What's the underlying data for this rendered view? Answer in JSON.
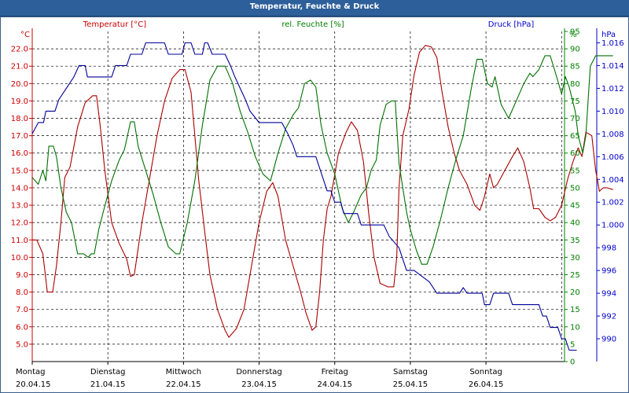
{
  "chart_data": {
    "type": "line",
    "title": "Temperatur, Feuchte & Druck",
    "x_days": [
      {
        "day": "Montag",
        "date": "20.04.15"
      },
      {
        "day": "Dienstag",
        "date": "21.04.15"
      },
      {
        "day": "Mittwoch",
        "date": "22.04.15"
      },
      {
        "day": "Donnerstag",
        "date": "23.04.15"
      },
      {
        "day": "Freitag",
        "date": "24.04.15"
      },
      {
        "day": "Samstag",
        "date": "25.04.15"
      },
      {
        "day": "Sonntag",
        "date": "26.04.15"
      }
    ],
    "xlim_days": [
      0,
      7
    ],
    "grid": true,
    "axes": {
      "temp": {
        "label": "Temperatur [°C]",
        "unit": "°C",
        "ylim": [
          4.0,
          23.0
        ],
        "ticks": [
          5.0,
          6.0,
          7.0,
          8.0,
          9.0,
          10.0,
          11.0,
          12.0,
          13.0,
          14.0,
          15.0,
          16.0,
          17.0,
          18.0,
          19.0,
          20.0,
          21.0,
          22.0
        ],
        "color": "#cc0000"
      },
      "hum": {
        "label": "rel. Feuchte [%]",
        "unit": "%",
        "ylim": [
          0,
          95
        ],
        "ticks": [
          0,
          5,
          10,
          15,
          20,
          25,
          30,
          35,
          40,
          45,
          50,
          55,
          60,
          65,
          70,
          75,
          80,
          85,
          90,
          95
        ],
        "color": "#008000"
      },
      "press": {
        "label": "Druck [hPa]",
        "unit": "hPa",
        "ylim": [
          988,
          1017
        ],
        "ticks": [
          990,
          992,
          994,
          996,
          998,
          1000,
          1002,
          1004,
          1006,
          1008,
          1010,
          1012,
          1014,
          1016
        ],
        "color": "#0000cc"
      }
    },
    "series": [
      {
        "name": "Temperatur [°C]",
        "axis": "temp",
        "color": "#aa0000",
        "points": [
          [
            0,
            11.0
          ],
          [
            0.06,
            11.0
          ],
          [
            0.14,
            10.2
          ],
          [
            0.2,
            8.0
          ],
          [
            0.27,
            8.0
          ],
          [
            0.32,
            9.5
          ],
          [
            0.38,
            12.0
          ],
          [
            0.43,
            14.6
          ],
          [
            0.5,
            15.2
          ],
          [
            0.6,
            17.5
          ],
          [
            0.7,
            18.9
          ],
          [
            0.8,
            19.3
          ],
          [
            0.85,
            19.3
          ],
          [
            0.9,
            17.5
          ],
          [
            0.96,
            15.0
          ],
          [
            1.05,
            12.0
          ],
          [
            1.15,
            10.8
          ],
          [
            1.25,
            9.9
          ],
          [
            1.3,
            8.9
          ],
          [
            1.35,
            9.0
          ],
          [
            1.45,
            12.0
          ],
          [
            1.55,
            14.5
          ],
          [
            1.65,
            17.0
          ],
          [
            1.75,
            19.0
          ],
          [
            1.85,
            20.3
          ],
          [
            1.95,
            20.8
          ],
          [
            2.02,
            20.8
          ],
          [
            2.1,
            19.5
          ],
          [
            2.15,
            17.0
          ],
          [
            2.2,
            14.5
          ],
          [
            2.28,
            11.5
          ],
          [
            2.35,
            9.0
          ],
          [
            2.45,
            7.0
          ],
          [
            2.55,
            5.8
          ],
          [
            2.6,
            5.4
          ],
          [
            2.7,
            5.9
          ],
          [
            2.8,
            7.0
          ],
          [
            2.9,
            9.5
          ],
          [
            3.0,
            12.0
          ],
          [
            3.1,
            13.8
          ],
          [
            3.18,
            14.3
          ],
          [
            3.25,
            13.5
          ],
          [
            3.35,
            11.0
          ],
          [
            3.45,
            9.5
          ],
          [
            3.55,
            8.0
          ],
          [
            3.62,
            6.8
          ],
          [
            3.7,
            5.8
          ],
          [
            3.75,
            6.0
          ],
          [
            3.8,
            8.0
          ],
          [
            3.85,
            11.0
          ],
          [
            3.9,
            12.8
          ],
          [
            3.95,
            13.5
          ],
          [
            4.05,
            16.0
          ],
          [
            4.15,
            17.2
          ],
          [
            4.22,
            17.8
          ],
          [
            4.3,
            17.3
          ],
          [
            4.38,
            15.5
          ],
          [
            4.45,
            12.5
          ],
          [
            4.52,
            10.0
          ],
          [
            4.6,
            8.5
          ],
          [
            4.7,
            8.3
          ],
          [
            4.78,
            8.3
          ],
          [
            4.82,
            10.0
          ],
          [
            4.85,
            14.0
          ],
          [
            4.9,
            17.0
          ],
          [
            4.98,
            18.5
          ],
          [
            5.05,
            20.5
          ],
          [
            5.12,
            21.8
          ],
          [
            5.2,
            22.2
          ],
          [
            5.28,
            22.1
          ],
          [
            5.35,
            21.5
          ],
          [
            5.42,
            19.5
          ],
          [
            5.5,
            17.5
          ],
          [
            5.58,
            16.0
          ],
          [
            5.65,
            15.0
          ],
          [
            5.75,
            14.2
          ],
          [
            5.85,
            13.0
          ],
          [
            5.92,
            12.7
          ],
          [
            5.98,
            13.5
          ],
          [
            6.05,
            14.8
          ],
          [
            6.1,
            14.0
          ],
          [
            6.15,
            14.2
          ],
          [
            6.25,
            15.0
          ],
          [
            6.35,
            15.8
          ],
          [
            6.42,
            16.3
          ],
          [
            6.5,
            15.5
          ],
          [
            6.58,
            14.0
          ],
          [
            6.63,
            12.8
          ],
          [
            6.7,
            12.8
          ],
          [
            6.78,
            12.3
          ],
          [
            6.85,
            12.1
          ],
          [
            6.92,
            12.3
          ],
          [
            7.0,
            13.0
          ],
          [
            7.08,
            14.5
          ],
          [
            7.15,
            15.5
          ],
          [
            7.22,
            16.3
          ],
          [
            7.27,
            15.8
          ],
          [
            7.32,
            17.2
          ],
          [
            7.4,
            17.0
          ],
          [
            7.45,
            15.0
          ],
          [
            7.5,
            13.8
          ],
          [
            7.55,
            14.0
          ],
          [
            7.6,
            14.0
          ],
          [
            7.68,
            13.9
          ]
        ]
      },
      {
        "name": "rel. Feuchte [%]",
        "axis": "hum",
        "color": "#007000",
        "points": [
          [
            0,
            53
          ],
          [
            0.08,
            51
          ],
          [
            0.14,
            55
          ],
          [
            0.18,
            52
          ],
          [
            0.22,
            62
          ],
          [
            0.28,
            62
          ],
          [
            0.32,
            59
          ],
          [
            0.38,
            50
          ],
          [
            0.45,
            43
          ],
          [
            0.52,
            40
          ],
          [
            0.6,
            31
          ],
          [
            0.68,
            31
          ],
          [
            0.74,
            30
          ],
          [
            0.78,
            31
          ],
          [
            0.82,
            31
          ],
          [
            0.88,
            38
          ],
          [
            0.95,
            44
          ],
          [
            1.0,
            48
          ],
          [
            1.05,
            52
          ],
          [
            1.15,
            58
          ],
          [
            1.22,
            61
          ],
          [
            1.3,
            69
          ],
          [
            1.35,
            69
          ],
          [
            1.4,
            62
          ],
          [
            1.5,
            55
          ],
          [
            1.6,
            48
          ],
          [
            1.7,
            40
          ],
          [
            1.8,
            33
          ],
          [
            1.9,
            31
          ],
          [
            1.95,
            31
          ],
          [
            2.05,
            40
          ],
          [
            2.15,
            52
          ],
          [
            2.25,
            68
          ],
          [
            2.35,
            81
          ],
          [
            2.45,
            85
          ],
          [
            2.55,
            85
          ],
          [
            2.65,
            80
          ],
          [
            2.75,
            72
          ],
          [
            2.85,
            66
          ],
          [
            2.95,
            59
          ],
          [
            3.05,
            54
          ],
          [
            3.15,
            52
          ],
          [
            3.25,
            60
          ],
          [
            3.35,
            67
          ],
          [
            3.45,
            71
          ],
          [
            3.52,
            73
          ],
          [
            3.6,
            80
          ],
          [
            3.68,
            81
          ],
          [
            3.75,
            79
          ],
          [
            3.82,
            68
          ],
          [
            3.9,
            60
          ],
          [
            4.0,
            54
          ],
          [
            4.1,
            44
          ],
          [
            4.18,
            40
          ],
          [
            4.25,
            43
          ],
          [
            4.35,
            48
          ],
          [
            4.42,
            50
          ],
          [
            4.48,
            55
          ],
          [
            4.55,
            58
          ],
          [
            4.6,
            68
          ],
          [
            4.68,
            74
          ],
          [
            4.75,
            75
          ],
          [
            4.8,
            75
          ],
          [
            4.85,
            57
          ],
          [
            4.9,
            50
          ],
          [
            4.95,
            43
          ],
          [
            5.0,
            38
          ],
          [
            5.08,
            32
          ],
          [
            5.15,
            28
          ],
          [
            5.22,
            28
          ],
          [
            5.3,
            33
          ],
          [
            5.4,
            41
          ],
          [
            5.5,
            50
          ],
          [
            5.6,
            58
          ],
          [
            5.7,
            65
          ],
          [
            5.8,
            78
          ],
          [
            5.88,
            87
          ],
          [
            5.95,
            87
          ],
          [
            6.02,
            80
          ],
          [
            6.08,
            79
          ],
          [
            6.12,
            82
          ],
          [
            6.2,
            74
          ],
          [
            6.3,
            70
          ],
          [
            6.4,
            75
          ],
          [
            6.5,
            80
          ],
          [
            6.58,
            83
          ],
          [
            6.62,
            82
          ],
          [
            6.7,
            84
          ],
          [
            6.78,
            88
          ],
          [
            6.85,
            88
          ],
          [
            6.92,
            83
          ],
          [
            7.0,
            77
          ],
          [
            7.05,
            82
          ],
          [
            7.1,
            79
          ],
          [
            7.18,
            72
          ],
          [
            7.22,
            65
          ],
          [
            7.28,
            60
          ],
          [
            7.32,
            65
          ],
          [
            7.38,
            85
          ],
          [
            7.45,
            88
          ],
          [
            7.55,
            88
          ],
          [
            7.68,
            88
          ]
        ]
      },
      {
        "name": "Druck [hPa]",
        "axis": "press",
        "color": "#000099",
        "points": [
          [
            0,
            1008
          ],
          [
            0.08,
            1009
          ],
          [
            0.15,
            1009
          ],
          [
            0.18,
            1010
          ],
          [
            0.3,
            1010
          ],
          [
            0.35,
            1011
          ],
          [
            0.45,
            1012
          ],
          [
            0.55,
            1013
          ],
          [
            0.62,
            1014
          ],
          [
            0.7,
            1014
          ],
          [
            0.73,
            1013
          ],
          [
            0.8,
            1013
          ],
          [
            1.05,
            1013
          ],
          [
            1.1,
            1014
          ],
          [
            1.25,
            1014
          ],
          [
            1.3,
            1015
          ],
          [
            1.45,
            1015
          ],
          [
            1.5,
            1016
          ],
          [
            1.75,
            1016
          ],
          [
            1.8,
            1015
          ],
          [
            1.98,
            1015
          ],
          [
            2.02,
            1016
          ],
          [
            2.1,
            1016
          ],
          [
            2.15,
            1015
          ],
          [
            2.25,
            1015
          ],
          [
            2.28,
            1016
          ],
          [
            2.32,
            1016
          ],
          [
            2.38,
            1015
          ],
          [
            2.55,
            1015
          ],
          [
            2.62,
            1014
          ],
          [
            2.68,
            1013
          ],
          [
            2.75,
            1012
          ],
          [
            2.82,
            1011
          ],
          [
            2.88,
            1010
          ],
          [
            3.0,
            1009
          ],
          [
            3.3,
            1009
          ],
          [
            3.38,
            1008
          ],
          [
            3.45,
            1007
          ],
          [
            3.5,
            1006
          ],
          [
            3.75,
            1006
          ],
          [
            3.8,
            1005
          ],
          [
            3.85,
            1004
          ],
          [
            3.9,
            1003
          ],
          [
            3.95,
            1003
          ],
          [
            4.0,
            1002
          ],
          [
            4.08,
            1002
          ],
          [
            4.12,
            1001
          ],
          [
            4.3,
            1001
          ],
          [
            4.35,
            1000
          ],
          [
            4.65,
            1000
          ],
          [
            4.72,
            999
          ],
          [
            4.85,
            998
          ],
          [
            4.9,
            997
          ],
          [
            4.95,
            996
          ],
          [
            5.05,
            996
          ],
          [
            5.25,
            995
          ],
          [
            5.35,
            994
          ],
          [
            5.65,
            994
          ],
          [
            5.7,
            994.5
          ],
          [
            5.75,
            994
          ],
          [
            5.95,
            994
          ],
          [
            5.98,
            993
          ],
          [
            6.05,
            993
          ],
          [
            6.1,
            994
          ],
          [
            6.3,
            994
          ],
          [
            6.35,
            993
          ],
          [
            6.7,
            993
          ],
          [
            6.75,
            992
          ],
          [
            6.8,
            992
          ],
          [
            6.85,
            991
          ],
          [
            6.95,
            991
          ],
          [
            7.0,
            990
          ],
          [
            7.05,
            990
          ],
          [
            7.1,
            989
          ],
          [
            7.2,
            989
          ]
        ]
      }
    ]
  }
}
